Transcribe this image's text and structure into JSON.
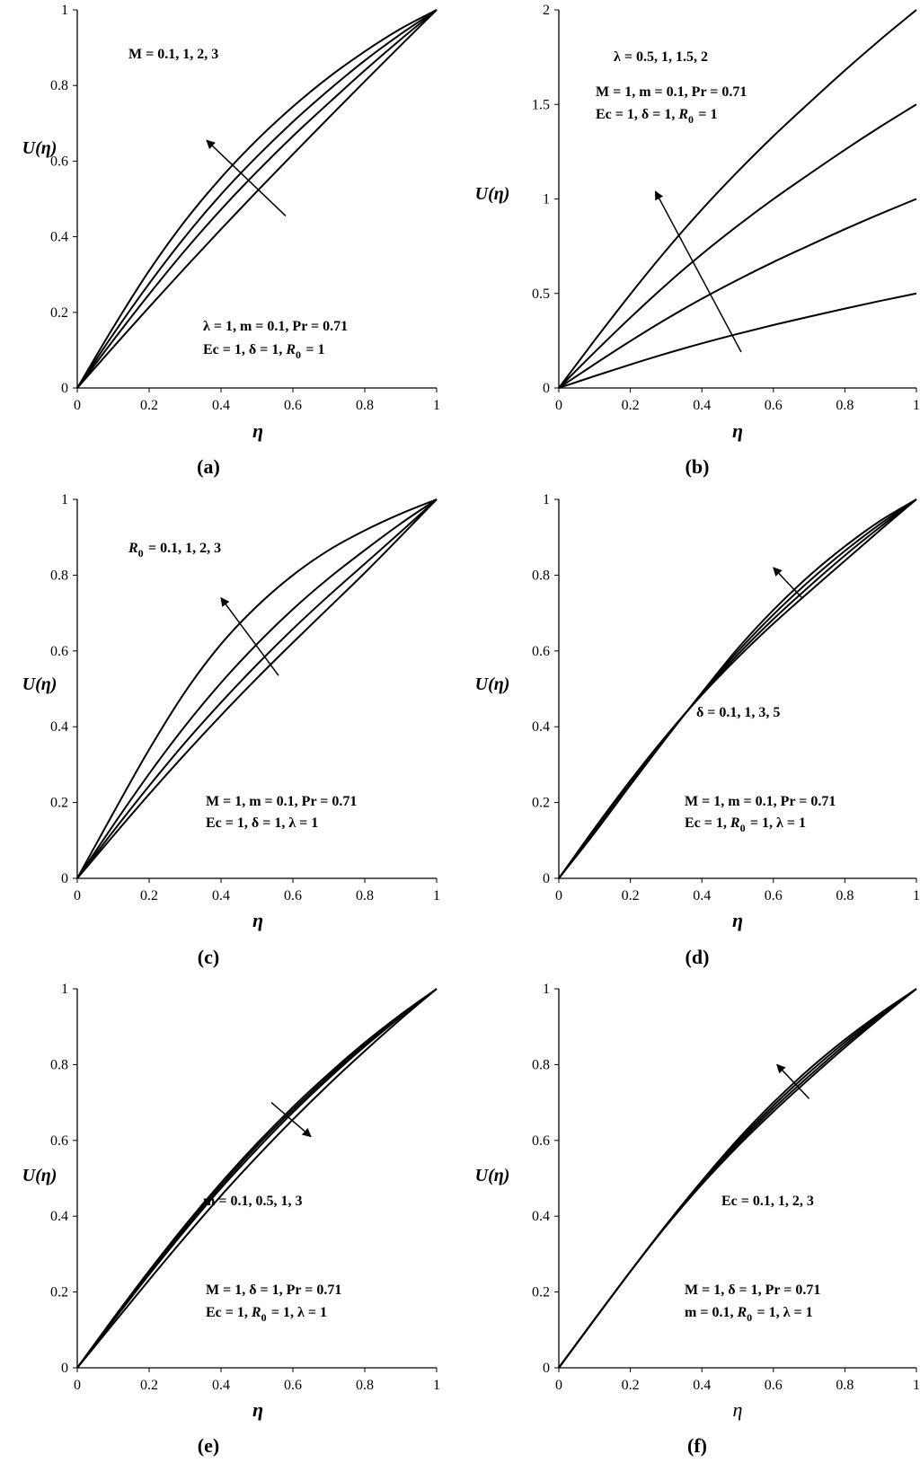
{
  "chart_data": [
    {
      "id": "a",
      "type": "line",
      "caption": "(a)",
      "xlabel": "η",
      "ylabel": "U(η)",
      "xlim": [
        0,
        1
      ],
      "ylim": [
        0,
        1
      ],
      "xticks": [
        "0",
        "0.2",
        "0.4",
        "0.6",
        "0.8",
        "1"
      ],
      "yticks": [
        "0",
        "0.2",
        "0.4",
        "0.6",
        "0.8",
        "1"
      ],
      "param_text": "M = 0.1, 1, 2, 3",
      "conditions": [
        "λ = 1, m = 0.1, Pr = 0.71",
        "Ec = 1, δ = 1, R0 = 1"
      ],
      "x": [
        0,
        0.1,
        0.2,
        0.3,
        0.4,
        0.5,
        0.6,
        0.7,
        0.8,
        0.9,
        1
      ],
      "series": [
        {
          "name": "M = 0.1",
          "values": [
            0,
            0.108,
            0.214,
            0.318,
            0.42,
            0.52,
            0.618,
            0.715,
            0.811,
            0.906,
            1
          ]
        },
        {
          "name": "M = 1",
          "values": [
            0,
            0.126,
            0.248,
            0.364,
            0.472,
            0.572,
            0.666,
            0.754,
            0.84,
            0.922,
            1
          ]
        },
        {
          "name": "M = 2",
          "values": [
            0,
            0.142,
            0.276,
            0.4,
            0.512,
            0.612,
            0.704,
            0.788,
            0.866,
            0.936,
            1
          ]
        },
        {
          "name": "M = 3",
          "values": [
            0,
            0.16,
            0.31,
            0.442,
            0.556,
            0.656,
            0.744,
            0.822,
            0.89,
            0.95,
            1
          ]
        }
      ]
    },
    {
      "id": "b",
      "type": "line",
      "caption": "(b)",
      "xlabel": "η",
      "ylabel": "U(η)",
      "xlim": [
        0,
        1
      ],
      "ylim": [
        0,
        2
      ],
      "xticks": [
        "0",
        "0.2",
        "0.4",
        "0.6",
        "0.8",
        "1"
      ],
      "yticks": [
        "0",
        "0.5",
        "1",
        "1.5",
        "2"
      ],
      "param_text": "λ = 0.5, 1, 1.5, 2",
      "conditions": [
        "M = 1, m = 0.1, Pr = 0.71",
        "Ec = 1, δ = 1, R0 = 1"
      ],
      "x": [
        0,
        0.1,
        0.2,
        0.3,
        0.4,
        0.5,
        0.6,
        0.7,
        0.8,
        0.9,
        1
      ],
      "series": [
        {
          "name": "λ = 0.5",
          "values": [
            0,
            0.063,
            0.124,
            0.182,
            0.236,
            0.286,
            0.333,
            0.377,
            0.42,
            0.461,
            0.5
          ]
        },
        {
          "name": "λ = 1",
          "values": [
            0,
            0.126,
            0.248,
            0.364,
            0.472,
            0.572,
            0.666,
            0.754,
            0.84,
            0.922,
            1
          ]
        },
        {
          "name": "λ = 1.5",
          "values": [
            0,
            0.189,
            0.372,
            0.546,
            0.708,
            0.858,
            0.999,
            1.131,
            1.26,
            1.383,
            1.5
          ]
        },
        {
          "name": "λ = 2",
          "values": [
            0,
            0.252,
            0.496,
            0.728,
            0.944,
            1.144,
            1.332,
            1.508,
            1.68,
            1.844,
            2
          ]
        }
      ]
    },
    {
      "id": "c",
      "type": "line",
      "caption": "(c)",
      "xlabel": "η",
      "ylabel": "U(η)",
      "xlim": [
        0,
        1
      ],
      "ylim": [
        0,
        1
      ],
      "xticks": [
        "0",
        "0.2",
        "0.4",
        "0.6",
        "0.8",
        "1"
      ],
      "yticks": [
        "0",
        "0.2",
        "0.4",
        "0.6",
        "0.8",
        "1"
      ],
      "param_text": "R0 = 0.1, 1, 2, 3",
      "conditions": [
        "M = 1, m = 0.1, Pr = 0.71",
        "Ec = 1, δ = 1, λ = 1"
      ],
      "x": [
        0,
        0.1,
        0.2,
        0.3,
        0.4,
        0.5,
        0.6,
        0.7,
        0.8,
        0.9,
        1
      ],
      "series": [
        {
          "name": "R0 = 0.1",
          "values": [
            0,
            0.172,
            0.34,
            0.492,
            0.618,
            0.718,
            0.8,
            0.866,
            0.918,
            0.962,
            1
          ]
        },
        {
          "name": "R0 = 1",
          "values": [
            0,
            0.14,
            0.276,
            0.402,
            0.516,
            0.618,
            0.71,
            0.792,
            0.866,
            0.936,
            1
          ]
        },
        {
          "name": "R0 = 2",
          "values": [
            0,
            0.124,
            0.244,
            0.358,
            0.464,
            0.564,
            0.658,
            0.746,
            0.83,
            0.914,
            1
          ]
        },
        {
          "name": "R0 = 3",
          "values": [
            0,
            0.112,
            0.222,
            0.328,
            0.43,
            0.528,
            0.622,
            0.714,
            0.806,
            0.902,
            1
          ]
        }
      ]
    },
    {
      "id": "d",
      "type": "line",
      "caption": "(d)",
      "xlabel": "η",
      "ylabel": "U(η)",
      "xlim": [
        0,
        1
      ],
      "ylim": [
        0,
        1
      ],
      "xticks": [
        "0",
        "0.2",
        "0.4",
        "0.6",
        "0.8",
        "1"
      ],
      "yticks": [
        "0",
        "0.2",
        "0.4",
        "0.6",
        "0.8",
        "1"
      ],
      "param_text": "δ = 0.1, 1, 3, 5",
      "conditions": [
        "M = 1, m = 0.1, Pr = 0.71",
        "Ec = 1, R0 = 1, λ = 1"
      ],
      "x": [
        0,
        0.1,
        0.2,
        0.3,
        0.4,
        0.5,
        0.6,
        0.7,
        0.8,
        0.9,
        1
      ],
      "series": [
        {
          "name": "δ = 0.1",
          "values": [
            0,
            0.132,
            0.258,
            0.376,
            0.484,
            0.582,
            0.672,
            0.756,
            0.838,
            0.92,
            1
          ]
        },
        {
          "name": "δ = 1",
          "values": [
            0,
            0.128,
            0.254,
            0.374,
            0.486,
            0.59,
            0.684,
            0.77,
            0.852,
            0.928,
            1
          ]
        },
        {
          "name": "δ = 3",
          "values": [
            0,
            0.124,
            0.25,
            0.372,
            0.488,
            0.598,
            0.696,
            0.784,
            0.864,
            0.936,
            1
          ]
        },
        {
          "name": "δ = 5",
          "values": [
            0,
            0.12,
            0.246,
            0.37,
            0.49,
            0.606,
            0.708,
            0.798,
            0.876,
            0.944,
            1
          ]
        }
      ]
    },
    {
      "id": "e",
      "type": "line",
      "caption": "(e)",
      "xlabel": "η",
      "ylabel": "U(η)",
      "xlim": [
        0,
        1
      ],
      "ylim": [
        0,
        1
      ],
      "xticks": [
        "0",
        "0.2",
        "0.4",
        "0.6",
        "0.8",
        "1"
      ],
      "yticks": [
        "0",
        "0.2",
        "0.4",
        "0.6",
        "0.8",
        "1"
      ],
      "param_text": "m = 0.1, 0.5, 1, 3",
      "conditions": [
        "M = 1, δ = 1, Pr = 0.71",
        "Ec = 1, R0 = 1, λ = 1"
      ],
      "x": [
        0,
        0.1,
        0.2,
        0.3,
        0.4,
        0.5,
        0.6,
        0.7,
        0.8,
        0.9,
        1
      ],
      "series": [
        {
          "name": "m = 0.1",
          "values": [
            0,
            0.13,
            0.256,
            0.376,
            0.488,
            0.592,
            0.688,
            0.776,
            0.858,
            0.932,
            1
          ]
        },
        {
          "name": "m = 0.5",
          "values": [
            0,
            0.127,
            0.251,
            0.37,
            0.481,
            0.585,
            0.681,
            0.77,
            0.853,
            0.929,
            1
          ]
        },
        {
          "name": "m = 1",
          "values": [
            0,
            0.124,
            0.246,
            0.363,
            0.474,
            0.577,
            0.674,
            0.764,
            0.848,
            0.926,
            1
          ]
        },
        {
          "name": "m = 3",
          "values": [
            0,
            0.116,
            0.232,
            0.345,
            0.454,
            0.557,
            0.655,
            0.748,
            0.836,
            0.92,
            1
          ]
        }
      ]
    },
    {
      "id": "f",
      "type": "line",
      "caption": "(f)",
      "xlabel": "η",
      "ylabel": "U(η)",
      "xlim": [
        0,
        1
      ],
      "ylim": [
        0,
        1
      ],
      "xticks": [
        "0",
        "0.2",
        "0.4",
        "0.6",
        "0.8",
        "1"
      ],
      "yticks": [
        "0",
        "0.2",
        "0.4",
        "0.6",
        "0.8",
        "1"
      ],
      "param_text": "Ec = 0.1, 1, 2, 3",
      "conditions": [
        "M = 1, δ = 1, Pr = 0.71",
        "m = 0.1, R0 = 1, λ = 1"
      ],
      "x": [
        0,
        0.1,
        0.2,
        0.3,
        0.4,
        0.5,
        0.6,
        0.7,
        0.8,
        0.9,
        1
      ],
      "series": [
        {
          "name": "Ec = 0.1",
          "values": [
            0,
            0.128,
            0.254,
            0.374,
            0.484,
            0.584,
            0.676,
            0.762,
            0.845,
            0.924,
            1
          ]
        },
        {
          "name": "Ec = 1",
          "values": [
            0,
            0.128,
            0.254,
            0.375,
            0.487,
            0.59,
            0.684,
            0.77,
            0.852,
            0.928,
            1
          ]
        },
        {
          "name": "Ec = 2",
          "values": [
            0,
            0.128,
            0.254,
            0.376,
            0.49,
            0.596,
            0.692,
            0.779,
            0.859,
            0.932,
            1
          ]
        },
        {
          "name": "Ec = 3",
          "values": [
            0,
            0.128,
            0.254,
            0.377,
            0.493,
            0.602,
            0.7,
            0.788,
            0.866,
            0.936,
            1
          ]
        }
      ]
    }
  ]
}
